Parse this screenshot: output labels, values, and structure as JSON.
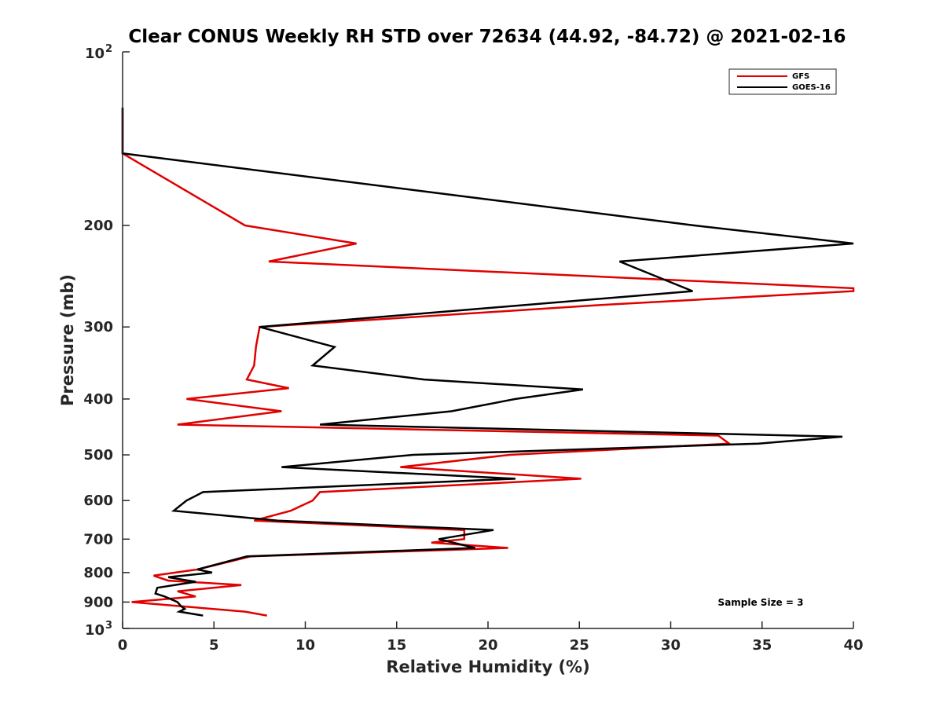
{
  "chart_data": {
    "type": "line",
    "title": "Clear CONUS Weekly RH STD over 72634 (44.92, -84.72) @ 2021-02-16",
    "xlabel": "Relative Humidity (%)",
    "ylabel": "Pressure (mb)",
    "xlim": [
      0,
      40
    ],
    "ylim": [
      100,
      1000
    ],
    "yscale": "log",
    "yreversed": true,
    "grid": false,
    "x_ticks": [
      0,
      5,
      10,
      15,
      20,
      25,
      30,
      35,
      40
    ],
    "x_tick_labels": [
      "0",
      "5",
      "10",
      "15",
      "20",
      "25",
      "30",
      "35",
      "40"
    ],
    "y_ticks": [
      200,
      300,
      400,
      500,
      600,
      700,
      800,
      900
    ],
    "y_tick_labels": [
      "200",
      "300",
      "400",
      "500",
      "600",
      "700",
      "800",
      "900"
    ],
    "y_decade_ticks": [
      {
        "value": 100,
        "base": "10",
        "exp": "2"
      },
      {
        "value": 1000,
        "base": "10",
        "exp": "3"
      }
    ],
    "legend_position": "top-right",
    "annotation": "Sample Size = 3",
    "series": [
      {
        "name": "GFS",
        "color": "#e00000",
        "points": [
          [
            0,
            125
          ],
          [
            0,
            150
          ],
          [
            6.7,
            200
          ],
          [
            12.8,
            215
          ],
          [
            8.0,
            231
          ],
          [
            40,
            257
          ],
          [
            40,
            260
          ],
          [
            26.0,
            275
          ],
          [
            7.5,
            300
          ],
          [
            7.3,
            325
          ],
          [
            7.2,
            350
          ],
          [
            6.8,
            370
          ],
          [
            9.1,
            383
          ],
          [
            3.5,
            400
          ],
          [
            8.7,
            420
          ],
          [
            3.0,
            443
          ],
          [
            32.6,
            463
          ],
          [
            33.2,
            478
          ],
          [
            21.2,
            500
          ],
          [
            15.2,
            525
          ],
          [
            25.1,
            550
          ],
          [
            10.8,
            580
          ],
          [
            10.4,
            600
          ],
          [
            9.2,
            625
          ],
          [
            7.2,
            650
          ],
          [
            18.7,
            675
          ],
          [
            18.7,
            700
          ],
          [
            16.9,
            710
          ],
          [
            21.1,
            725
          ],
          [
            7.0,
            750
          ],
          [
            5.2,
            775
          ],
          [
            4.1,
            790
          ],
          [
            1.7,
            810
          ],
          [
            2.5,
            826
          ],
          [
            6.5,
            841
          ],
          [
            3.0,
            862
          ],
          [
            4.0,
            880
          ],
          [
            0.5,
            900
          ],
          [
            3.2,
            915
          ],
          [
            6.7,
            935
          ],
          [
            7.9,
            950
          ]
        ]
      },
      {
        "name": "GOES-16",
        "color": "#000000",
        "points": [
          [
            0,
            125
          ],
          [
            0,
            150
          ],
          [
            31.3,
            200
          ],
          [
            40,
            215
          ],
          [
            27.2,
            231
          ],
          [
            31.2,
            260
          ],
          [
            7.5,
            300
          ],
          [
            11.6,
            325
          ],
          [
            10.4,
            350
          ],
          [
            16.5,
            370
          ],
          [
            25.2,
            385
          ],
          [
            21.5,
            400
          ],
          [
            18.0,
            420
          ],
          [
            10.8,
            443
          ],
          [
            39.4,
            465
          ],
          [
            34.8,
            478
          ],
          [
            15.9,
            500
          ],
          [
            8.7,
            525
          ],
          [
            21.5,
            550
          ],
          [
            4.4,
            580
          ],
          [
            3.5,
            600
          ],
          [
            2.8,
            625
          ],
          [
            8.5,
            650
          ],
          [
            20.3,
            675
          ],
          [
            17.3,
            700
          ],
          [
            19.3,
            725
          ],
          [
            6.8,
            750
          ],
          [
            5.1,
            775
          ],
          [
            4.1,
            790
          ],
          [
            4.9,
            800
          ],
          [
            2.5,
            815
          ],
          [
            4.0,
            830
          ],
          [
            1.9,
            850
          ],
          [
            1.8,
            870
          ],
          [
            2.3,
            880
          ],
          [
            3.0,
            900
          ],
          [
            3.2,
            915
          ],
          [
            3.4,
            925
          ],
          [
            3.1,
            935
          ],
          [
            4.4,
            950
          ]
        ]
      }
    ]
  }
}
